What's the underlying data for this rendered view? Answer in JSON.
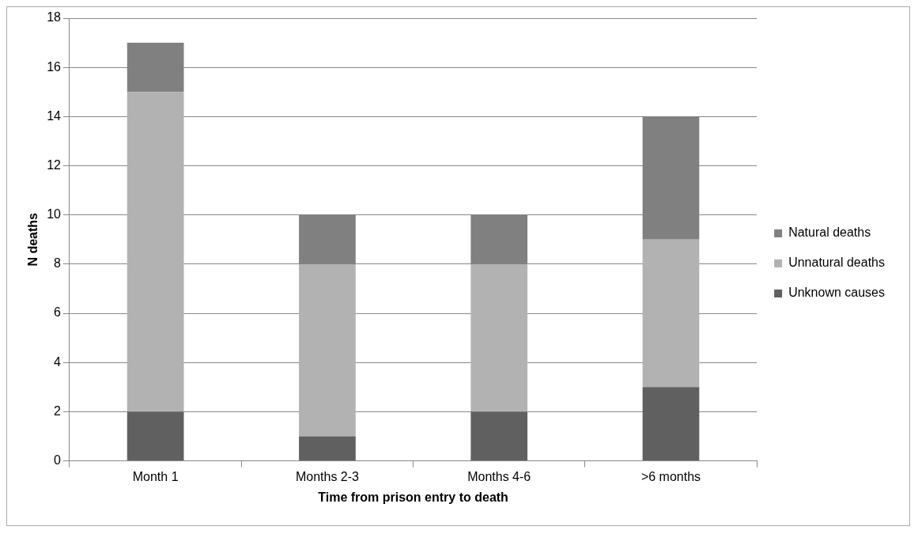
{
  "chart_data": {
    "type": "bar",
    "xlabel": "Time from prison entry to death",
    "ylabel": "N deaths",
    "categories": [
      "Month 1",
      "Months 2-3",
      "Months 4-6",
      ">6 months"
    ],
    "stacked": true,
    "series": [
      {
        "name": "Unknown causes",
        "color": "#606060",
        "values": [
          2,
          1,
          2,
          3
        ]
      },
      {
        "name": "Unnatural deaths",
        "color": "#b2b2b2",
        "values": [
          13,
          7,
          6,
          6
        ]
      },
      {
        "name": "Natural deaths",
        "color": "#808080",
        "values": [
          2,
          2,
          2,
          5
        ]
      }
    ],
    "ylim": [
      0,
      18
    ],
    "yticks": [
      0,
      2,
      4,
      6,
      8,
      10,
      12,
      14,
      16,
      18
    ],
    "grid": "y",
    "legend": "right"
  }
}
